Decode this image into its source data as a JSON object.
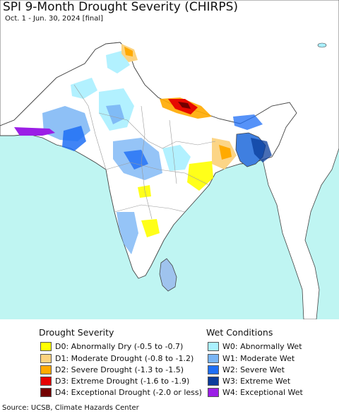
{
  "header": {
    "title": "SPI 9-Month Drought Severity (CHIRPS)",
    "subtitle": "Oct. 1 - Jun. 30, 2024 [final]"
  },
  "colors": {
    "sea": "#bff5f2",
    "land_neutral": "#ffffff",
    "outside_region": "#ffffff",
    "border": "#444444",
    "state_border": "#9a9a9a"
  },
  "legend": {
    "drought": {
      "title": "Drought Severity",
      "items": [
        {
          "code": "D0",
          "label": "D0: Abnormally Dry (-0.5 to -0.7)",
          "color": "#ffff00"
        },
        {
          "code": "D1",
          "label": "D1: Moderate Drought (-0.8 to -1.2)",
          "color": "#fcd37f"
        },
        {
          "code": "D2",
          "label": "D2: Severe Drought (-1.3 to -1.5)",
          "color": "#ffaa00"
        },
        {
          "code": "D3",
          "label": "D3: Extreme Drought (-1.6 to -1.9)",
          "color": "#e60000"
        },
        {
          "code": "D4",
          "label": "D4: Exceptional Drought (-2.0 or less)",
          "color": "#730000"
        }
      ]
    },
    "wet": {
      "title": "Wet Conditions",
      "items": [
        {
          "code": "W0",
          "label": "W0: Abnormally Wet",
          "color": "#aaf0ff"
        },
        {
          "code": "W1",
          "label": "W1: Moderate Wet",
          "color": "#7ab5f5"
        },
        {
          "code": "W2",
          "label": "W2: Severe Wet",
          "color": "#1e6ef5"
        },
        {
          "code": "W3",
          "label": "W3: Extreme Wet",
          "color": "#0a3c9b"
        },
        {
          "code": "W4",
          "label": "W4: Exceptional Wet",
          "color": "#9b1ee6"
        }
      ]
    }
  },
  "footer": {
    "source": "Source: UCSB, Climate Hazards Center"
  }
}
